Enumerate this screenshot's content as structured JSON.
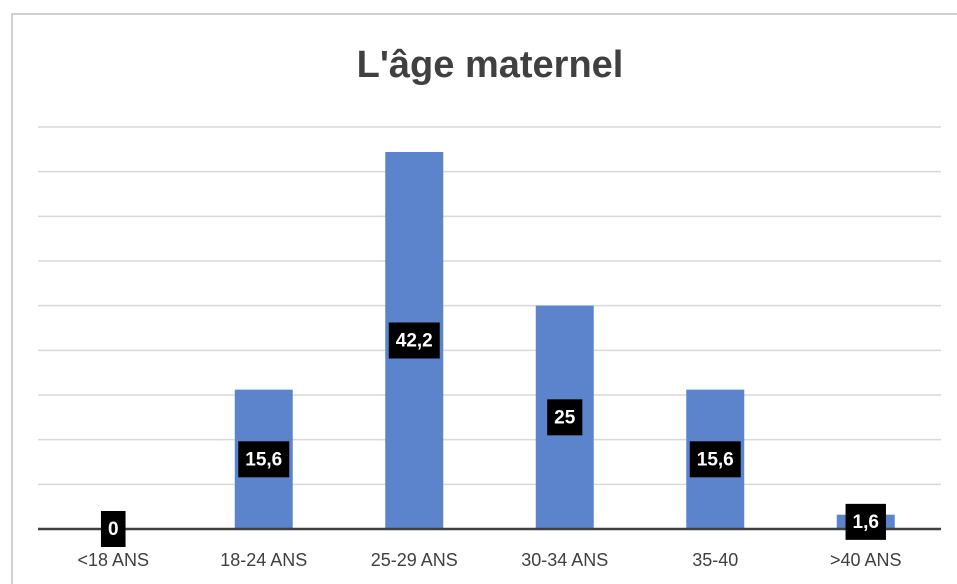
{
  "chart_data": {
    "type": "bar",
    "title": "L'âge maternel",
    "categories": [
      "<18 ANS",
      "18-24 ANS",
      "25-29 ANS",
      "30-34 ANS",
      "35-40",
      ">40 ANS"
    ],
    "values": [
      0,
      15.6,
      42.2,
      25,
      15.6,
      1.6
    ],
    "value_labels": [
      "0",
      "15,6",
      "42,2",
      "25",
      "15,6",
      "1,6"
    ],
    "color": "#5b84cd",
    "ylim": [
      0,
      45
    ],
    "yticks": [
      0,
      5,
      10,
      15,
      20,
      25,
      30,
      35,
      40,
      45
    ],
    "grid": true
  }
}
